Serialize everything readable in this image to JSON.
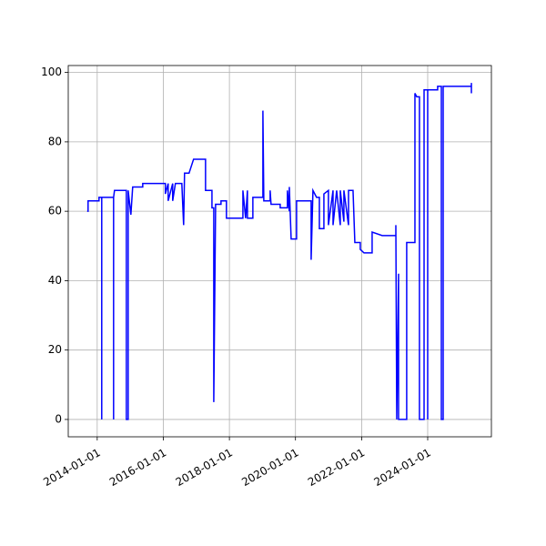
{
  "chart_data": {
    "type": "line",
    "color": "#0000ff",
    "grid": true,
    "xlim": [
      "2013-02-15",
      "2025-12-05"
    ],
    "xticks": [
      "2014-01-01",
      "2016-01-01",
      "2018-01-01",
      "2020-01-01",
      "2022-01-01",
      "2024-01-01"
    ],
    "ylim": [
      -5,
      102
    ],
    "yticks": [
      0,
      20,
      40,
      60,
      80,
      100
    ],
    "x": [
      "2013-09-12",
      "2013-09-22",
      "2013-09-22",
      "2014-01-21",
      "2014-01-21",
      "2014-02-20",
      "2014-02-20",
      "2014-02-20",
      "2014-07-01",
      "2014-07-01",
      "2014-07-01",
      "2014-07-11",
      "2014-11-19",
      "2014-11-19",
      "2014-12-09",
      "2014-12-09",
      "2015-01-08",
      "2015-01-28",
      "2015-05-19",
      "2015-05-19",
      "2016-01-24",
      "2016-01-24",
      "2016-02-24",
      "2016-02-24",
      "2016-04-14",
      "2016-04-14",
      "2016-05-14",
      "2016-07-24",
      "2016-08-13",
      "2016-08-23",
      "2016-10-12",
      "2016-12-01",
      "2017-04-12",
      "2017-04-12",
      "2017-06-22",
      "2017-06-22",
      "2017-07-12",
      "2017-07-12",
      "2017-08-01",
      "2017-08-01",
      "2017-09-30",
      "2017-09-30",
      "2017-11-29",
      "2017-11-29",
      "2018-05-30",
      "2018-05-30",
      "2018-06-29",
      "2018-07-19",
      "2018-07-19",
      "2018-09-17",
      "2018-09-17",
      "2018-11-07",
      "2019-01-06",
      "2019-01-06",
      "2019-01-16",
      "2019-03-27",
      "2019-03-27",
      "2019-04-06",
      "2019-07-16",
      "2019-07-16",
      "2019-10-04",
      "2019-10-04",
      "2019-10-25",
      "2019-10-25",
      "2019-11-14",
      "2020-01-13",
      "2020-01-13",
      "2020-06-22",
      "2020-06-22",
      "2020-07-12",
      "2020-08-21",
      "2020-09-21",
      "2020-09-21",
      "2020-11-10",
      "2020-11-10",
      "2020-12-30",
      "2020-12-30",
      "2021-02-19",
      "2021-02-19",
      "2021-03-31",
      "2021-05-10",
      "2021-05-10",
      "2021-06-19",
      "2021-06-19",
      "2021-08-09",
      "2021-08-09",
      "2021-09-28",
      "2021-10-18",
      "2021-12-17",
      "2021-12-17",
      "2022-01-27",
      "2022-04-27",
      "2022-04-27",
      "2022-08-16",
      "2023-01-14",
      "2023-01-14",
      "2023-01-24",
      "2023-02-13",
      "2023-02-13",
      "2023-05-14",
      "2023-05-14",
      "2023-08-13",
      "2023-08-13",
      "2023-09-02",
      "2023-10-02",
      "2023-10-02",
      "2023-11-22",
      "2023-11-22",
      "2024-01-01",
      "2024-01-01",
      "2024-01-01",
      "2024-04-20",
      "2024-04-20",
      "2024-05-31",
      "2024-05-31",
      "2024-06-20",
      "2024-06-20",
      "2025-04-28",
      "2025-04-28",
      "2025-04-28"
    ],
    "values": [
      60,
      60,
      63,
      63,
      64,
      64,
      0,
      64,
      64,
      0,
      64,
      66,
      66,
      0,
      0,
      66,
      59,
      67,
      67,
      68,
      68,
      65,
      68,
      63,
      68,
      63,
      68,
      68,
      56,
      71,
      71,
      75,
      75,
      66,
      66,
      61,
      61,
      5,
      61,
      62,
      62,
      63,
      63,
      58,
      58,
      66,
      58,
      66,
      58,
      58,
      64,
      64,
      64,
      89,
      63,
      63,
      66,
      62,
      62,
      61,
      61,
      66,
      60,
      67,
      52,
      52,
      63,
      63,
      46,
      66,
      64,
      64,
      55,
      55,
      65,
      66,
      56,
      66,
      56,
      66,
      56,
      66,
      57,
      66,
      56,
      66,
      66,
      51,
      51,
      49,
      48,
      48,
      54,
      53,
      53,
      56,
      0,
      42,
      0,
      0,
      51,
      51,
      94,
      93,
      93,
      0,
      0,
      95,
      95,
      0,
      95,
      95,
      96,
      96,
      0,
      0,
      96,
      96,
      94,
      97
    ]
  }
}
